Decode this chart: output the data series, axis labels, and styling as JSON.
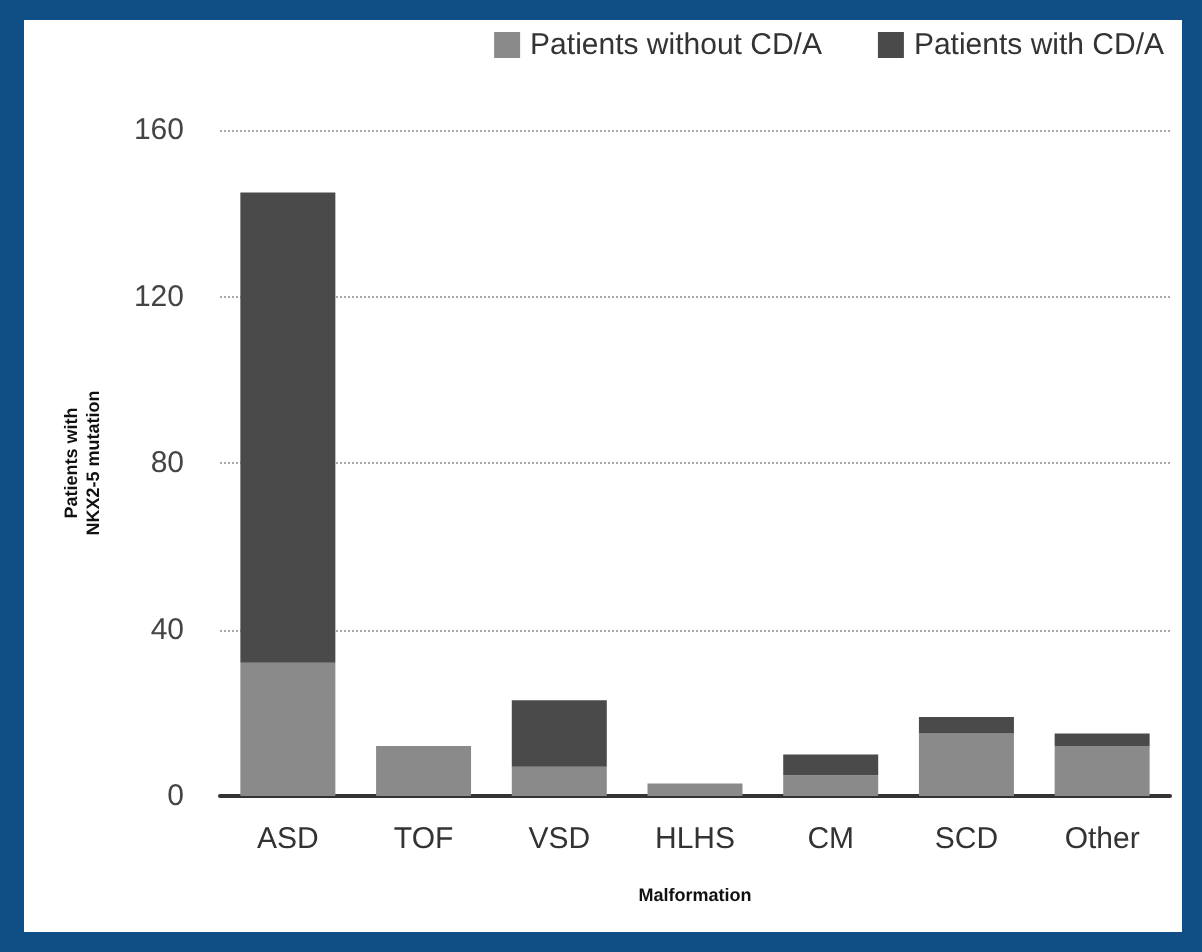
{
  "chart_data": {
    "type": "bar",
    "stacked": true,
    "xlabel": "Malformation",
    "ylabel": "Patients with\nNKX2-5 mutation",
    "categories": [
      "ASD",
      "TOF",
      "VSD",
      "HLHS",
      "CM",
      "SCD",
      "Other"
    ],
    "series": [
      {
        "name": "Patients without CD/A",
        "color": "#8a8a8a",
        "values": [
          32,
          12,
          7,
          3,
          5,
          15,
          12
        ]
      },
      {
        "name": "Patients with CD/A",
        "color": "#4a4a4a",
        "values": [
          113,
          0,
          16,
          0,
          5,
          4,
          3
        ]
      }
    ],
    "ylim": [
      0,
      160
    ],
    "yticks": [
      0,
      40,
      80,
      120,
      160
    ],
    "grid": "y",
    "legend": "top right"
  }
}
